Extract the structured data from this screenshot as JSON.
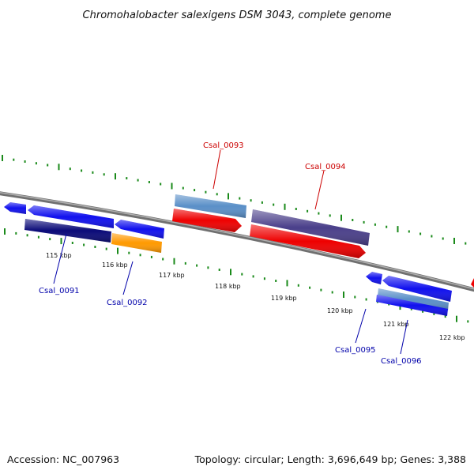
{
  "title": "Chromohalobacter salexigens DSM 3043, complete genome",
  "accession_text": "Accession: NC_007963",
  "summary_text": "Topology: circular; Length: 3,696,649 bp; Genes: 3,388",
  "colors": {
    "backbone": "#808080",
    "tick": "#1a8a1a",
    "label_forward": "#cc0000",
    "label_reverse": "#0000aa"
  },
  "tick_labels": [
    "115 kbp",
    "116 kbp",
    "117 kbp",
    "118 kbp",
    "119 kbp",
    "120 kbp",
    "121 kbp",
    "122 kbp"
  ],
  "gene_labels": [
    {
      "id": "Csal_0091",
      "strand": "reverse"
    },
    {
      "id": "Csal_0092",
      "strand": "reverse"
    },
    {
      "id": "Csal_0093",
      "strand": "forward"
    },
    {
      "id": "Csal_0094",
      "strand": "forward"
    },
    {
      "id": "Csal_0095",
      "strand": "reverse"
    },
    {
      "id": "Csal_0096",
      "strand": "reverse"
    }
  ],
  "features": [
    {
      "name": "gene-small-left",
      "track": "reverse-outer",
      "color": "#1010ee",
      "direction": "left"
    },
    {
      "name": "gene-csal0091",
      "track": "reverse-outer",
      "color": "#1010ee",
      "direction": "left"
    },
    {
      "name": "cds-csal0091",
      "track": "reverse-inner",
      "color": "#0a0a78",
      "direction": "none"
    },
    {
      "name": "gene-csal0092",
      "track": "reverse-outer",
      "color": "#1010ee",
      "direction": "left"
    },
    {
      "name": "cds-csal0092",
      "track": "reverse-inner",
      "color": "#ff9900",
      "direction": "none"
    },
    {
      "name": "cds-csal0093",
      "track": "forward-outer",
      "color": "#5a8fc8",
      "direction": "none"
    },
    {
      "name": "gene-csal0093",
      "track": "forward-inner",
      "color": "#ee0000",
      "direction": "right"
    },
    {
      "name": "cds-csal0094",
      "track": "forward-outer",
      "color": "#4a3f8a",
      "direction": "none"
    },
    {
      "name": "gene-csal0094",
      "track": "forward-inner",
      "color": "#ee0000",
      "direction": "right"
    },
    {
      "name": "gene-csal0095",
      "track": "reverse-outer",
      "color": "#1010ee",
      "direction": "left"
    },
    {
      "name": "gene-csal0096",
      "track": "reverse-outer",
      "color": "#1010ee",
      "direction": "left"
    },
    {
      "name": "cds-csal0096-a",
      "track": "reverse-inner",
      "color": "#5a8fc8",
      "direction": "none"
    },
    {
      "name": "cds-csal0096-b",
      "track": "reverse-inner",
      "color": "#1010ee",
      "direction": "none"
    },
    {
      "name": "gene-edge-right",
      "track": "forward-inner",
      "color": "#ee0000",
      "direction": "right"
    }
  ]
}
